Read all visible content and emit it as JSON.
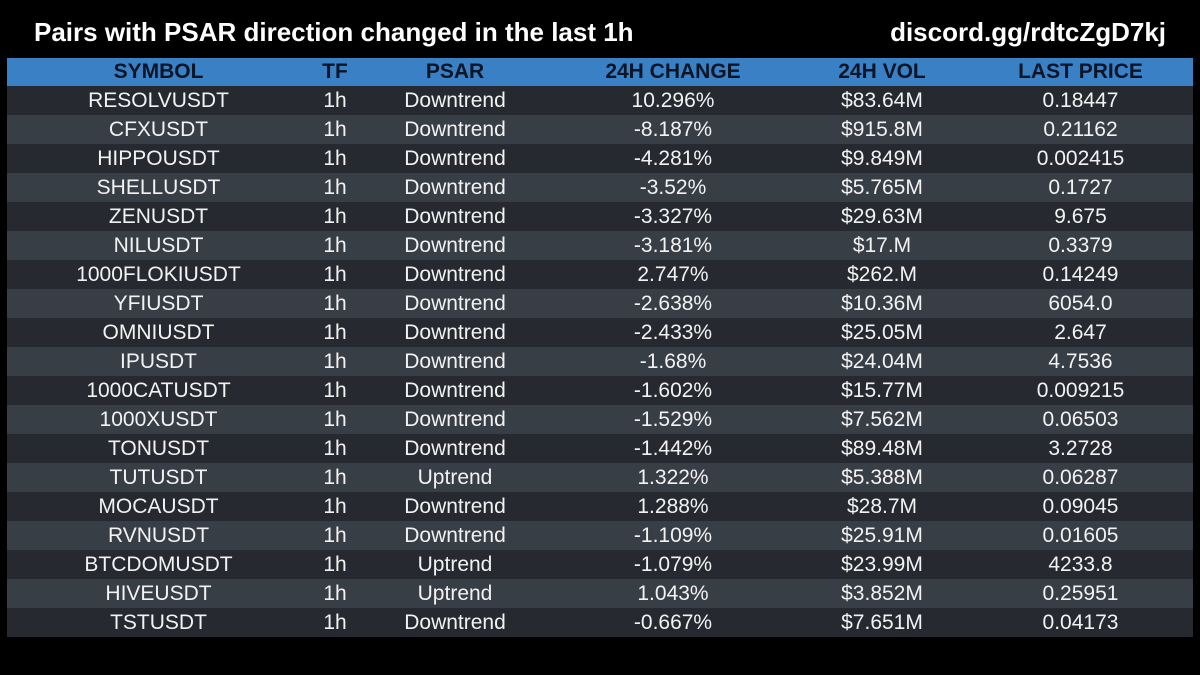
{
  "header": {
    "title": "Pairs with PSAR direction changed in the last 1h",
    "discord": "discord.gg/rdtcZgD7kj"
  },
  "colors": {
    "background": "#000000",
    "header_row": "#3a80c4",
    "row_odd": "#262a30",
    "row_even": "#383e46",
    "text": "#f2f2f2"
  },
  "table": {
    "columns": [
      "SYMBOL",
      "TF",
      "PSAR",
      "24H CHANGE",
      "24H VOL",
      "LAST PRICE"
    ],
    "rows": [
      [
        "RESOLVUSDT",
        "1h",
        "Downtrend",
        "10.296%",
        "$83.64M",
        "0.18447"
      ],
      [
        "CFXUSDT",
        "1h",
        "Downtrend",
        "-8.187%",
        "$915.8M",
        "0.21162"
      ],
      [
        "HIPPOUSDT",
        "1h",
        "Downtrend",
        "-4.281%",
        "$9.849M",
        "0.002415"
      ],
      [
        "SHELLUSDT",
        "1h",
        "Downtrend",
        "-3.52%",
        "$5.765M",
        "0.1727"
      ],
      [
        "ZENUSDT",
        "1h",
        "Downtrend",
        "-3.327%",
        "$29.63M",
        "9.675"
      ],
      [
        "NILUSDT",
        "1h",
        "Downtrend",
        "-3.181%",
        "$17.M",
        "0.3379"
      ],
      [
        "1000FLOKIUSDT",
        "1h",
        "Downtrend",
        "2.747%",
        "$262.M",
        "0.14249"
      ],
      [
        "YFIUSDT",
        "1h",
        "Downtrend",
        "-2.638%",
        "$10.36M",
        "6054.0"
      ],
      [
        "OMNIUSDT",
        "1h",
        "Downtrend",
        "-2.433%",
        "$25.05M",
        "2.647"
      ],
      [
        "IPUSDT",
        "1h",
        "Downtrend",
        "-1.68%",
        "$24.04M",
        "4.7536"
      ],
      [
        "1000CATUSDT",
        "1h",
        "Downtrend",
        "-1.602%",
        "$15.77M",
        "0.009215"
      ],
      [
        "1000XUSDT",
        "1h",
        "Downtrend",
        "-1.529%",
        "$7.562M",
        "0.06503"
      ],
      [
        "TONUSDT",
        "1h",
        "Downtrend",
        "-1.442%",
        "$89.48M",
        "3.2728"
      ],
      [
        "TUTUSDT",
        "1h",
        "Uptrend",
        "1.322%",
        "$5.388M",
        "0.06287"
      ],
      [
        "MOCAUSDT",
        "1h",
        "Downtrend",
        "1.288%",
        "$28.7M",
        "0.09045"
      ],
      [
        "RVNUSDT",
        "1h",
        "Downtrend",
        "-1.109%",
        "$25.91M",
        "0.01605"
      ],
      [
        "BTCDOMUSDT",
        "1h",
        "Uptrend",
        "-1.079%",
        "$23.99M",
        "4233.8"
      ],
      [
        "HIVEUSDT",
        "1h",
        "Uptrend",
        "1.043%",
        "$3.852M",
        "0.25951"
      ],
      [
        "TSTUSDT",
        "1h",
        "Downtrend",
        "-0.667%",
        "$7.651M",
        "0.04173"
      ]
    ]
  }
}
